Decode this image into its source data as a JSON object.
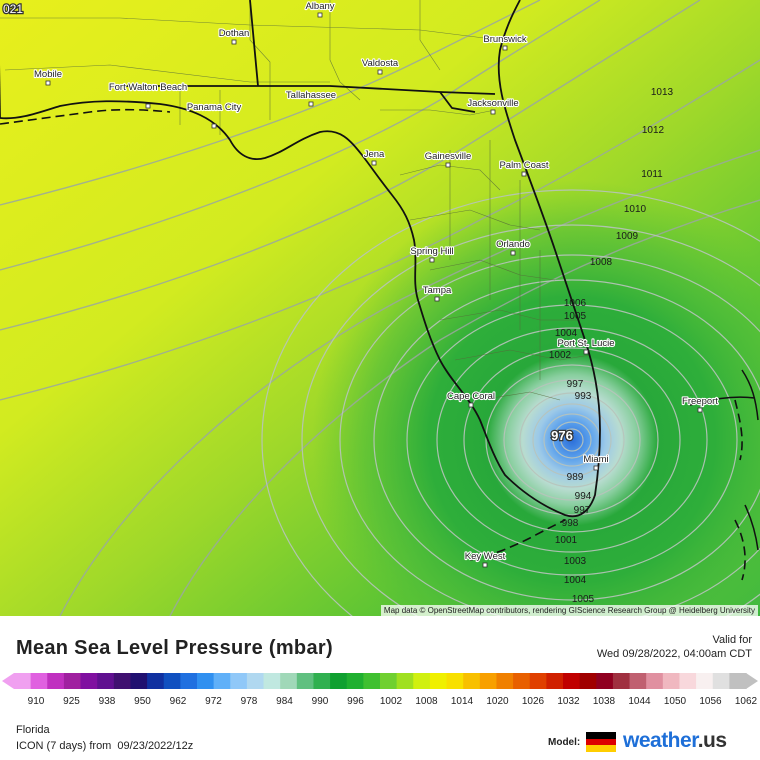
{
  "map": {
    "corner_label": "021",
    "attribution": "Map data © OpenStreetMap contributors, rendering GIScience Research Group @ Heidelberg University",
    "cities": [
      "Albany",
      "Dothan",
      "Brunswick",
      "Mobile",
      "Valdosta",
      "Fort Walton Beach",
      "Panama City",
      "Tallahassee",
      "Jacksonville",
      "Jena",
      "Gainesville",
      "Palm Coast",
      "Orlando",
      "Spring Hill",
      "Tampa",
      "Port St. Lucie",
      "Cape Coral",
      "Freeport",
      "Miami",
      "Key West"
    ],
    "isobars": [
      "1013",
      "1012",
      "1011",
      "1010",
      "1009",
      "1008",
      "1006",
      "1005",
      "1004",
      "1002",
      "997",
      "993",
      "989",
      "994",
      "997",
      "998",
      "1001",
      "1003",
      "1004",
      "1005"
    ],
    "center_pressure": "976"
  },
  "legend": {
    "title": "Mean Sea Level Pressure (mbar)",
    "valid_for": "Valid for",
    "valid_time": "Wed 09/28/2022, 04:00am CDT",
    "ticks": [
      "910",
      "925",
      "938",
      "950",
      "962",
      "972",
      "978",
      "984",
      "990",
      "996",
      "1002",
      "1008",
      "1014",
      "1020",
      "1026",
      "1032",
      "1038",
      "1044",
      "1050",
      "1056",
      "1062"
    ],
    "colors": [
      "#f0a0f0",
      "#e060e0",
      "#c030c0",
      "#a020a0",
      "#8010a0",
      "#601090",
      "#401070",
      "#201070",
      "#1030a0",
      "#1050c0",
      "#2070e0",
      "#3090f0",
      "#60b0f8",
      "#90c8f8",
      "#b0d8f0",
      "#c0e8e0",
      "#a0d8b8",
      "#60c080",
      "#30b050",
      "#10a030",
      "#20b030",
      "#40c030",
      "#70d030",
      "#a0e020",
      "#d0f010",
      "#f0f000",
      "#f8e000",
      "#f8c000",
      "#f8a000",
      "#f08000",
      "#e86000",
      "#e04000",
      "#d02000",
      "#c00000",
      "#a00000",
      "#900020",
      "#a03040",
      "#c06070",
      "#e090a0",
      "#f0b8c0",
      "#f8d8dc",
      "#f8f0f0",
      "#e0e0e0",
      "#c0c0c0"
    ],
    "region": "Florida",
    "model_run": "ICON (7 days) from",
    "model_run_date": "09/23/2022/12z",
    "model_label": "Model:",
    "brand": "weather",
    "brand_tld": ".us"
  }
}
